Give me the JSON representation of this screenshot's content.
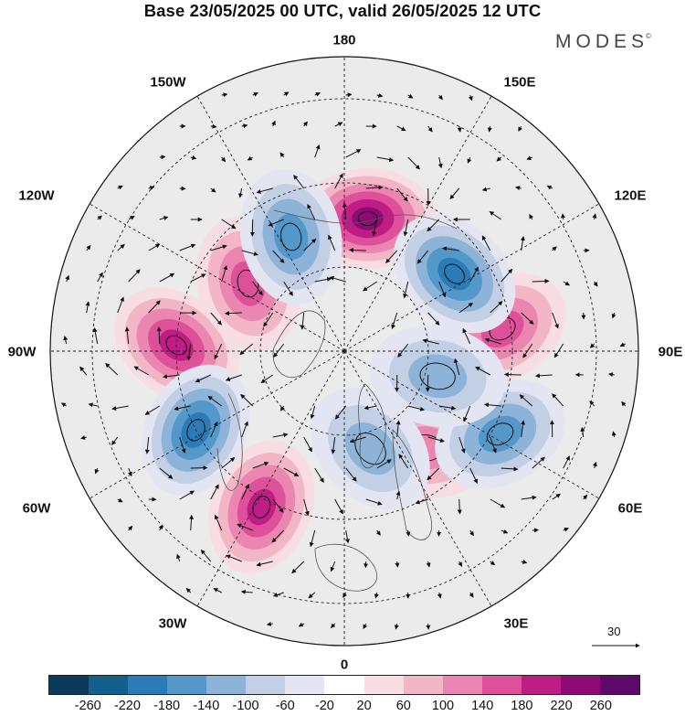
{
  "header": {
    "title": "Base 23/05/2025 00 UTC, valid 26/05/2025 12 UTC",
    "brand": "MODES",
    "brand_mark": "©"
  },
  "map": {
    "projection": "north-polar-stereographic",
    "labels": {
      "top": "180",
      "bottom": "0",
      "left": "90W",
      "right": "90E",
      "ul150": "150W",
      "ul120": "120W",
      "ur150": "150E",
      "ur120": "120E",
      "ll60": "60W",
      "ll30": "30W",
      "lr60": "60E",
      "lr30": "30E"
    },
    "anomaly_centers": [
      {
        "lon": 170,
        "lat": 58,
        "value": 240
      },
      {
        "lon": -92,
        "lat": 50,
        "value": 200
      },
      {
        "lon": -125,
        "lat": 62,
        "value": 140
      },
      {
        "lon": -28,
        "lat": 48,
        "value": 180
      },
      {
        "lon": 98,
        "lat": 52,
        "value": 170
      },
      {
        "lon": 40,
        "lat": 60,
        "value": 130
      },
      {
        "lon": 125,
        "lat": 58,
        "value": -200
      },
      {
        "lon": -155,
        "lat": 60,
        "value": -170
      },
      {
        "lon": -62,
        "lat": 50,
        "value": -180
      },
      {
        "lon": 62,
        "lat": 48,
        "value": -150
      },
      {
        "lon": 75,
        "lat": 67,
        "value": -120
      },
      {
        "lon": 15,
        "lat": 66,
        "value": -100
      }
    ],
    "reference_vector": "30"
  },
  "legend": {
    "colors": [
      "#0c3a5c",
      "#155f8c",
      "#2b7cb6",
      "#5498c9",
      "#8db3d8",
      "#c2cfe5",
      "#e4e5f2",
      "#ffffff",
      "#f8dde2",
      "#f2b6c7",
      "#eb86b0",
      "#df509b",
      "#bf1d85",
      "#8e0a75",
      "#5e0a6b"
    ],
    "ticks": [
      "-260",
      "-220",
      "-180",
      "-140",
      "-100",
      "-60",
      "-20",
      "20",
      "60",
      "100",
      "140",
      "180",
      "220",
      "260"
    ]
  }
}
